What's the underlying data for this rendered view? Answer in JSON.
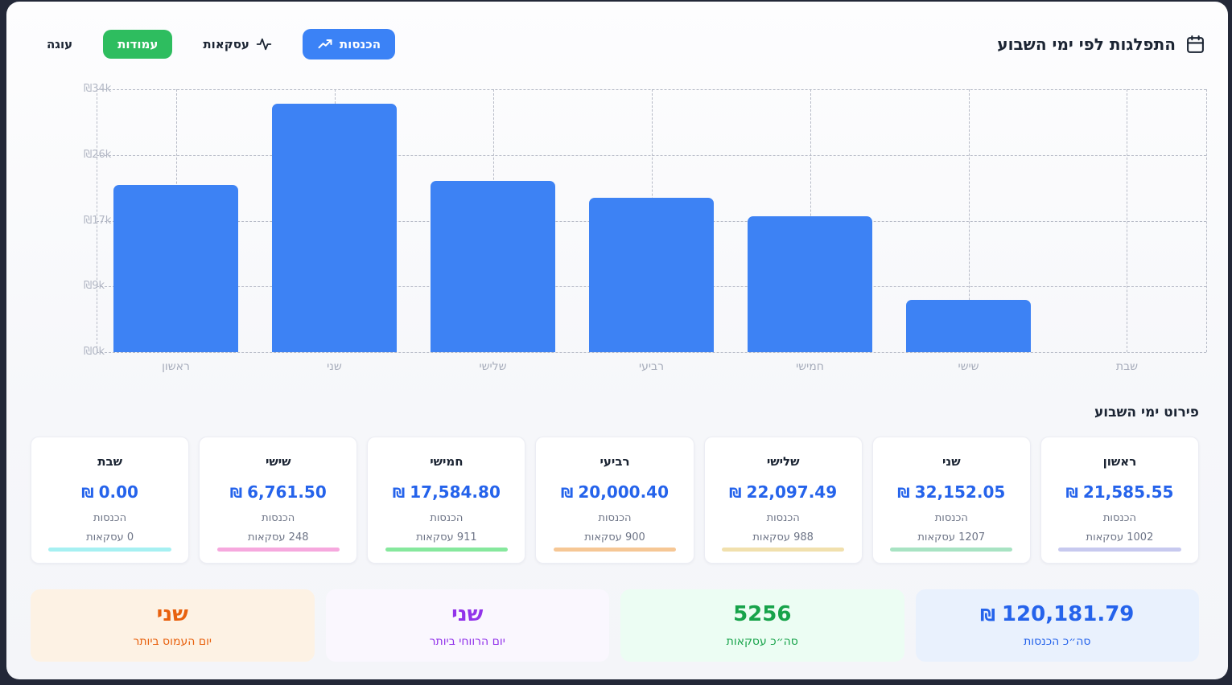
{
  "page": {
    "frame_color": "#232838",
    "panel_color": "#f7f8fb"
  },
  "header": {
    "title": "התפלגות לפי ימי השבוע",
    "buttons": [
      {
        "id": "revenue",
        "label": "הכנסות",
        "icon": "trending-up-icon",
        "active": true,
        "bg": "#3b82f6",
        "fg": "#ffffff"
      },
      {
        "id": "transactions",
        "label": "עסקאות",
        "icon": "activity-icon",
        "active": false,
        "bg": "",
        "fg": "#1b2433"
      },
      {
        "id": "columns",
        "label": "עמודות",
        "icon": "",
        "active": true,
        "bg": "#2ebd5f",
        "fg": "#ffffff"
      },
      {
        "id": "pie",
        "label": "עוגה",
        "icon": "",
        "active": false,
        "bg": "",
        "fg": "#1b2433"
      }
    ]
  },
  "chart_data": {
    "type": "bar",
    "title": "התפלגות לפי ימי השבוע",
    "categories": [
      "ראשון",
      "שני",
      "שלישי",
      "רביעי",
      "חמישי",
      "שישי",
      "שבת"
    ],
    "values": [
      21585.55,
      32152.05,
      22097.49,
      20000.4,
      17584.8,
      6761.5,
      0
    ],
    "y_ticks": [
      "₪34k",
      "₪26k",
      "₪17k",
      "₪9k",
      "₪0k"
    ],
    "y_max": 34000,
    "bar_color": "#3d82f4",
    "grid": "dashed horizontal and vertical at category centers",
    "legend": "none"
  },
  "details": {
    "heading": "פירוט ימי השבוע",
    "currency": "₪",
    "cards": [
      {
        "day": "ראשון",
        "amount": "21,585.55",
        "revenue_label": "הכנסות",
        "transactions": "1002 עסקאות",
        "accent": "#c7c9ef"
      },
      {
        "day": "שני",
        "amount": "32,152.05",
        "revenue_label": "הכנסות",
        "transactions": "1207 עסקאות",
        "accent": "#a8e3c3"
      },
      {
        "day": "שלישי",
        "amount": "22,097.49",
        "revenue_label": "הכנסות",
        "transactions": "988 עסקאות",
        "accent": "#f1e0ad"
      },
      {
        "day": "רביעי",
        "amount": "20,000.40",
        "revenue_label": "הכנסות",
        "transactions": "900 עסקאות",
        "accent": "#f6c795"
      },
      {
        "day": "חמישי",
        "amount": "17,584.80",
        "revenue_label": "הכנסות",
        "transactions": "911 עסקאות",
        "accent": "#86e89d"
      },
      {
        "day": "שישי",
        "amount": "6,761.50",
        "revenue_label": "הכנסות",
        "transactions": "248 עסקאות",
        "accent": "#f6a8de"
      },
      {
        "day": "שבת",
        "amount": "0.00",
        "revenue_label": "הכנסות",
        "transactions": "0 עסקאות",
        "accent": "#a6f0f2"
      }
    ]
  },
  "summary": {
    "cards": [
      {
        "id": "total-revenue",
        "value": "120,181.79",
        "currency": "₪",
        "label": "סה״כ הכנסות",
        "bg": "#e9f1fd",
        "color": "#2563eb"
      },
      {
        "id": "total-transactions",
        "value": "5256",
        "currency": "",
        "label": "סה״כ עסקאות",
        "bg": "#ecfdf3",
        "color": "#17a34a"
      },
      {
        "id": "most-profitable-day",
        "value": "שני",
        "currency": "",
        "label": "יום הרווחי ביותר",
        "bg": "#faf7fe",
        "color": "#9233ea"
      },
      {
        "id": "busiest-day",
        "value": "שני",
        "currency": "",
        "label": "יום העמוס ביותר",
        "bg": "#fdf2e4",
        "color": "#e8610e"
      }
    ]
  }
}
